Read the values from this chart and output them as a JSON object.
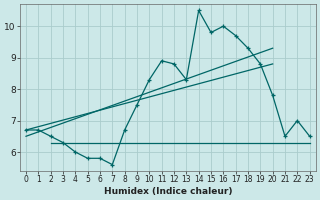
{
  "xlabel": "Humidex (Indice chaleur)",
  "bg_color": "#cce8e8",
  "grid_color": "#aacccc",
  "line_color": "#006666",
  "xlim": [
    -0.5,
    23.5
  ],
  "ylim": [
    5.4,
    10.7
  ],
  "yticks": [
    6,
    7,
    8,
    9,
    10
  ],
  "xticks": [
    0,
    1,
    2,
    3,
    4,
    5,
    6,
    7,
    8,
    9,
    10,
    11,
    12,
    13,
    14,
    15,
    16,
    17,
    18,
    19,
    20,
    21,
    22,
    23
  ],
  "curve1_x": [
    0,
    1,
    2,
    3,
    4,
    5,
    6,
    7,
    8,
    9,
    10,
    11,
    12,
    13,
    14,
    15,
    16,
    17,
    18,
    19,
    20,
    21,
    22,
    23
  ],
  "curve1_y": [
    6.7,
    6.7,
    6.5,
    6.3,
    6.0,
    5.8,
    5.8,
    5.6,
    6.7,
    7.5,
    8.3,
    8.9,
    8.8,
    8.3,
    10.5,
    9.8,
    10.0,
    9.7,
    9.3,
    8.8,
    7.8,
    6.5,
    7.0,
    6.5
  ],
  "flat_line_x": [
    2,
    23
  ],
  "flat_line_y": [
    6.3,
    6.3
  ],
  "reg_line1_x": [
    0,
    20
  ],
  "reg_line1_y": [
    6.7,
    8.8
  ],
  "reg_line2_x": [
    0,
    20
  ],
  "reg_line2_y": [
    6.5,
    9.3
  ]
}
